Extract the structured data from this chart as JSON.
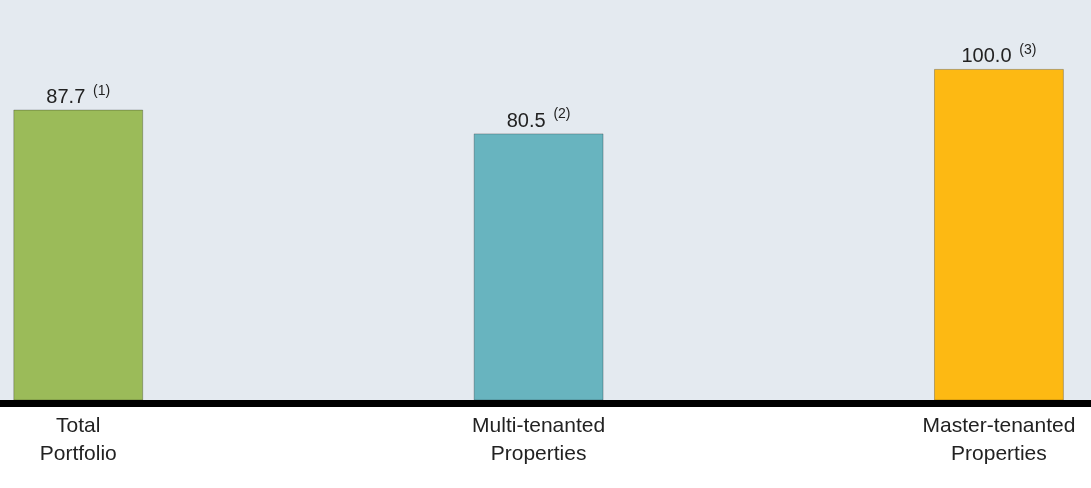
{
  "chart_data": {
    "type": "bar",
    "categories": [
      "Total Portfolio",
      "Multi-tenanted Properties",
      "Master-tenanted Properties"
    ],
    "values": [
      87.7,
      80.5,
      100.0
    ],
    "colors": [
      "#9bbb59",
      "#68b4bf",
      "#fdb913"
    ],
    "value_labels": [
      "87.7$^{(1)}$",
      "80.5$^{(2)}$",
      "100.0$^{(3)}$"
    ],
    "grid": false,
    "legend": false
  }
}
